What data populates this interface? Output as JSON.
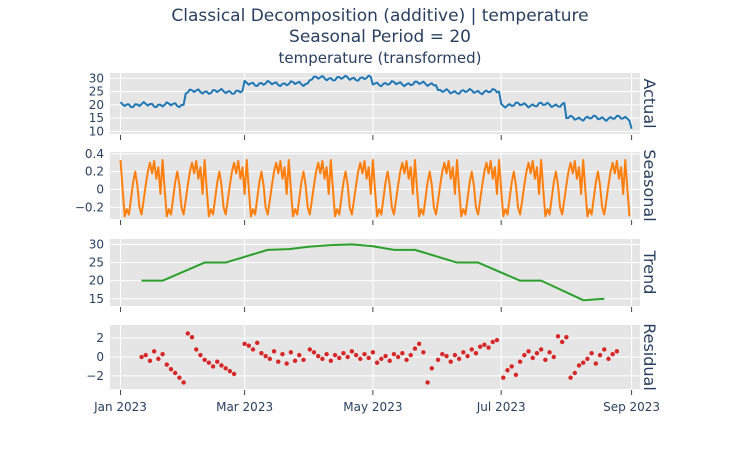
{
  "chart_data": {
    "type": "line",
    "title": "Classical Decomposition (additive) | temperature",
    "subtitle_1": "Seasonal Period = 20",
    "subtitle_2": "temperature (transformed)",
    "x_axis": {
      "range": [
        "2022-12-27",
        "2023-09-05"
      ],
      "ticks": [
        {
          "date": "2023-01-01",
          "label": "Jan 2023"
        },
        {
          "date": "2023-03-01",
          "label": "Mar 2023"
        },
        {
          "date": "2023-05-01",
          "label": "May 2023"
        },
        {
          "date": "2023-07-01",
          "label": "Jul 2023"
        },
        {
          "date": "2023-09-01",
          "label": "Sep 2023"
        }
      ]
    },
    "panels": [
      {
        "key": "actual",
        "label": "Actual",
        "color": "#1f77b4",
        "ylim": [
          9,
          32
        ],
        "yticks": [
          10,
          15,
          20,
          25,
          30
        ],
        "ytick_labels": [
          "10",
          "15",
          "20",
          "25",
          "30"
        ],
        "mode": "line",
        "segments": [
          {
            "start": "2023-01-01",
            "end": "2023-01-31",
            "level": 20
          },
          {
            "start": "2023-02-01",
            "end": "2023-02-28",
            "level": 25
          },
          {
            "start": "2023-03-01",
            "end": "2023-03-31",
            "level": 28
          },
          {
            "start": "2023-04-01",
            "end": "2023-04-30",
            "level": 30
          },
          {
            "start": "2023-05-01",
            "end": "2023-05-31",
            "level": 28
          },
          {
            "start": "2023-06-01",
            "end": "2023-06-30",
            "level": 25
          },
          {
            "start": "2023-07-01",
            "end": "2023-07-31",
            "level": 20
          },
          {
            "start": "2023-08-01",
            "end": "2023-08-31",
            "level": 15
          }
        ],
        "last_value": 11
      },
      {
        "key": "seasonal",
        "label": "Seasonal",
        "color": "#ff7f0e",
        "ylim": [
          -0.33,
          0.42
        ],
        "yticks": [
          -0.2,
          0,
          0.2,
          0.4
        ],
        "ytick_labels": [
          "−0.2",
          "0",
          "0.2",
          "0.4"
        ],
        "mode": "line",
        "period": 20,
        "pattern": [
          0.33,
          0.0,
          -0.3,
          -0.22,
          -0.28,
          -0.1,
          0.08,
          0.2,
          0.05,
          -0.2,
          -0.28,
          -0.12,
          0.05,
          0.2,
          0.3,
          0.18,
          0.32,
          0.12,
          0.25,
          -0.05
        ]
      },
      {
        "key": "trend",
        "label": "Trend",
        "color": "#2ca02c",
        "ylim": [
          13,
          31.5
        ],
        "yticks": [
          15,
          20,
          25,
          30
        ],
        "ytick_labels": [
          "15",
          "20",
          "25",
          "30"
        ],
        "mode": "line",
        "points": [
          [
            "2023-01-11",
            20.0
          ],
          [
            "2023-01-21",
            20.0
          ],
          [
            "2023-02-10",
            25.0
          ],
          [
            "2023-02-20",
            25.0
          ],
          [
            "2023-03-12",
            28.5
          ],
          [
            "2023-03-22",
            28.7
          ],
          [
            "2023-04-01",
            29.4
          ],
          [
            "2023-04-11",
            29.8
          ],
          [
            "2023-04-21",
            30.0
          ],
          [
            "2023-05-01",
            29.5
          ],
          [
            "2023-05-11",
            28.5
          ],
          [
            "2023-05-21",
            28.5
          ],
          [
            "2023-06-10",
            25.0
          ],
          [
            "2023-06-20",
            25.0
          ],
          [
            "2023-07-10",
            20.0
          ],
          [
            "2023-07-20",
            20.0
          ],
          [
            "2023-08-09",
            14.6
          ],
          [
            "2023-08-19",
            15.0
          ]
        ]
      },
      {
        "key": "residual",
        "label": "Residual",
        "color": "#d62728",
        "ylim": [
          -3.4,
          3.4
        ],
        "yticks": [
          -2,
          0,
          2
        ],
        "ytick_labels": [
          "−2",
          "0",
          "2"
        ],
        "mode": "markers",
        "points": [
          [
            "2023-01-11",
            0.0
          ],
          [
            "2023-01-13",
            0.2
          ],
          [
            "2023-01-15",
            -0.4
          ],
          [
            "2023-01-17",
            0.6
          ],
          [
            "2023-01-19",
            -0.2
          ],
          [
            "2023-01-21",
            0.3
          ],
          [
            "2023-01-23",
            -0.8
          ],
          [
            "2023-01-25",
            -1.3
          ],
          [
            "2023-01-27",
            -1.7
          ],
          [
            "2023-01-29",
            -2.2
          ],
          [
            "2023-01-31",
            -2.7
          ],
          [
            "2023-02-02",
            2.5
          ],
          [
            "2023-02-04",
            2.1
          ],
          [
            "2023-02-06",
            0.8
          ],
          [
            "2023-02-08",
            0.2
          ],
          [
            "2023-02-10",
            -0.3
          ],
          [
            "2023-02-12",
            -0.6
          ],
          [
            "2023-02-14",
            -1.0
          ],
          [
            "2023-02-16",
            -0.5
          ],
          [
            "2023-02-18",
            -0.9
          ],
          [
            "2023-02-20",
            -1.2
          ],
          [
            "2023-02-22",
            -1.5
          ],
          [
            "2023-02-24",
            -1.8
          ],
          [
            "2023-03-01",
            1.4
          ],
          [
            "2023-03-03",
            1.2
          ],
          [
            "2023-03-05",
            0.8
          ],
          [
            "2023-03-07",
            1.5
          ],
          [
            "2023-03-09",
            0.4
          ],
          [
            "2023-03-11",
            0.1
          ],
          [
            "2023-03-13",
            -0.2
          ],
          [
            "2023-03-15",
            0.6
          ],
          [
            "2023-03-17",
            -0.5
          ],
          [
            "2023-03-19",
            0.3
          ],
          [
            "2023-03-21",
            -0.7
          ],
          [
            "2023-03-23",
            0.5
          ],
          [
            "2023-03-25",
            -0.4
          ],
          [
            "2023-03-27",
            0.2
          ],
          [
            "2023-03-29",
            -0.3
          ],
          [
            "2023-04-01",
            0.8
          ],
          [
            "2023-04-03",
            0.5
          ],
          [
            "2023-04-05",
            0.1
          ],
          [
            "2023-04-07",
            -0.2
          ],
          [
            "2023-04-09",
            0.3
          ],
          [
            "2023-04-11",
            -0.4
          ],
          [
            "2023-04-13",
            0.2
          ],
          [
            "2023-04-15",
            -0.1
          ],
          [
            "2023-04-17",
            0.4
          ],
          [
            "2023-04-19",
            0.0
          ],
          [
            "2023-04-21",
            0.6
          ],
          [
            "2023-04-23",
            0.2
          ],
          [
            "2023-04-25",
            -0.2
          ],
          [
            "2023-04-27",
            0.3
          ],
          [
            "2023-04-29",
            -0.1
          ],
          [
            "2023-05-01",
            0.5
          ],
          [
            "2023-05-03",
            -0.6
          ],
          [
            "2023-05-05",
            -0.2
          ],
          [
            "2023-05-07",
            0.1
          ],
          [
            "2023-05-09",
            -0.4
          ],
          [
            "2023-05-11",
            0.3
          ],
          [
            "2023-05-13",
            0.0
          ],
          [
            "2023-05-15",
            0.4
          ],
          [
            "2023-05-17",
            -0.3
          ],
          [
            "2023-05-19",
            0.2
          ],
          [
            "2023-05-21",
            0.9
          ],
          [
            "2023-05-23",
            1.4
          ],
          [
            "2023-05-25",
            0.5
          ],
          [
            "2023-05-27",
            -2.7
          ],
          [
            "2023-05-29",
            -1.2
          ],
          [
            "2023-06-01",
            -0.3
          ],
          [
            "2023-06-03",
            0.3
          ],
          [
            "2023-06-05",
            0.1
          ],
          [
            "2023-06-07",
            -0.5
          ],
          [
            "2023-06-09",
            0.2
          ],
          [
            "2023-06-11",
            -0.2
          ],
          [
            "2023-06-13",
            0.5
          ],
          [
            "2023-06-15",
            0.1
          ],
          [
            "2023-06-17",
            0.8
          ],
          [
            "2023-06-19",
            0.4
          ],
          [
            "2023-06-21",
            1.1
          ],
          [
            "2023-06-23",
            1.3
          ],
          [
            "2023-06-25",
            1.0
          ],
          [
            "2023-06-27",
            1.6
          ],
          [
            "2023-06-29",
            1.8
          ],
          [
            "2023-07-02",
            -2.2
          ],
          [
            "2023-07-04",
            -1.4
          ],
          [
            "2023-07-06",
            -1.0
          ],
          [
            "2023-07-08",
            -1.9
          ],
          [
            "2023-07-10",
            -0.5
          ],
          [
            "2023-07-12",
            0.2
          ],
          [
            "2023-07-14",
            0.6
          ],
          [
            "2023-07-16",
            -0.1
          ],
          [
            "2023-07-18",
            0.4
          ],
          [
            "2023-07-20",
            0.8
          ],
          [
            "2023-07-22",
            -0.3
          ],
          [
            "2023-07-24",
            0.5
          ],
          [
            "2023-07-26",
            0.0
          ],
          [
            "2023-07-28",
            2.2
          ],
          [
            "2023-07-30",
            1.6
          ],
          [
            "2023-08-01",
            2.1
          ],
          [
            "2023-08-03",
            -2.2
          ],
          [
            "2023-08-05",
            -1.7
          ],
          [
            "2023-08-07",
            -0.9
          ],
          [
            "2023-08-09",
            -0.6
          ],
          [
            "2023-08-11",
            -0.2
          ],
          [
            "2023-08-13",
            0.4
          ],
          [
            "2023-08-15",
            -0.7
          ],
          [
            "2023-08-17",
            0.2
          ],
          [
            "2023-08-19",
            0.8
          ],
          [
            "2023-08-21",
            -0.2
          ],
          [
            "2023-08-23",
            0.3
          ],
          [
            "2023-08-25",
            0.6
          ]
        ]
      }
    ]
  }
}
